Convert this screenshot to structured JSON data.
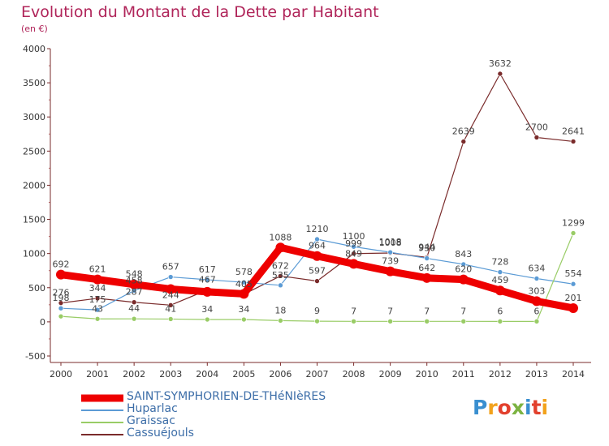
{
  "header": {
    "title": "Evolution du Montant de la Dette par Habitant",
    "unit": "(en €)"
  },
  "logo": {
    "text": "Proxiti",
    "letters": [
      "P",
      "r",
      "o",
      "x",
      "i",
      "t",
      "i"
    ]
  },
  "chart_data": {
    "type": "line",
    "title": "Evolution du Montant de la Dette par Habitant",
    "subtitle": "(en €)",
    "xlabel": "",
    "ylabel": "",
    "x": [
      "2000",
      "2001",
      "2002",
      "2003",
      "2004",
      "2005",
      "2006",
      "2007",
      "2008",
      "2009",
      "2010",
      "2011",
      "2012",
      "2013",
      "2014"
    ],
    "ylim": [
      -500,
      4000
    ],
    "yticks": [
      -500,
      0,
      500,
      1000,
      1500,
      2000,
      2500,
      3000,
      3500,
      4000
    ],
    "grid": false,
    "legend_position": "bottom-left",
    "series": [
      {
        "name": "SAINT-SYMPHORIEN-DE-THéNIèRES",
        "color": "#ee0000",
        "values": [
          692,
          621,
          548,
          480,
          440,
          410,
          1088,
          964,
          849,
          739,
          642,
          620,
          459,
          303,
          201
        ],
        "labels": [
          "692",
          "621",
          "548",
          "",
          "",
          "",
          "1088",
          "964",
          "849",
          "739",
          "642",
          "620",
          "459",
          "303",
          "201"
        ]
      },
      {
        "name": "Huparlac",
        "color": "#5b9bd5",
        "values": [
          198,
          175,
          458,
          657,
          617,
          578,
          535,
          1210,
          1100,
          1018,
          930,
          843,
          728,
          634,
          554
        ],
        "labels": [
          "198",
          "175",
          "458",
          "657",
          "617",
          "578",
          "535",
          "1210",
          "1100",
          "1018",
          "930",
          "843",
          "728",
          "634",
          "554"
        ]
      },
      {
        "name": "Graissac",
        "color": "#99cc66",
        "values": [
          80,
          43,
          44,
          41,
          34,
          34,
          18,
          9,
          7,
          7,
          7,
          7,
          6,
          6,
          1299
        ],
        "labels": [
          "",
          "43",
          "44",
          "41",
          "34",
          "34",
          "18",
          "9",
          "7",
          "7",
          "7",
          "7",
          "6",
          "6",
          "1299"
        ]
      },
      {
        "name": "Cassuéjouls",
        "color": "#7a2b2b",
        "values": [
          276,
          344,
          287,
          244,
          467,
          405,
          672,
          597,
          999,
          1008,
          944,
          2639,
          3632,
          2700,
          2641
        ],
        "labels": [
          "276",
          "344",
          "287",
          "244",
          "467",
          "405",
          "672",
          "597",
          "999",
          "1008",
          "944",
          "2639",
          "3632",
          "2700",
          "2641"
        ]
      }
    ]
  }
}
